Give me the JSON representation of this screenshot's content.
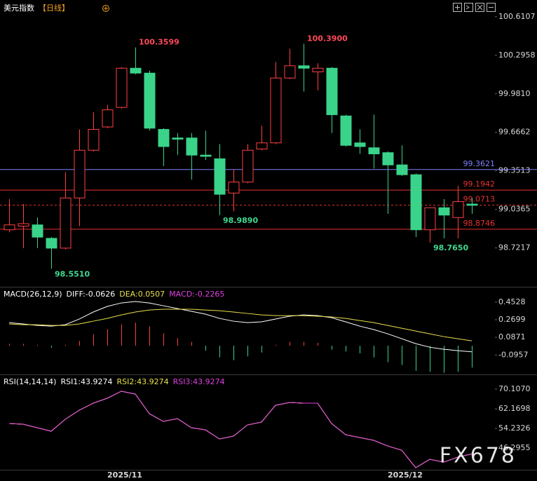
{
  "chart_data": [
    {
      "type": "candlestick",
      "title": "美元指数",
      "period": "【日线】",
      "categories": [
        null,
        null,
        null,
        null,
        null,
        null,
        null,
        null,
        "2025/11",
        null,
        null,
        null,
        null,
        null,
        null,
        null,
        null,
        null,
        null,
        null,
        null,
        null,
        null,
        null,
        null,
        null,
        null,
        null,
        "2025/12",
        null,
        null,
        null,
        null,
        null
      ],
      "open": [
        98.87,
        98.9,
        98.91,
        98.8,
        98.72,
        99.13,
        99.52,
        99.71,
        99.87,
        100.19,
        100.15,
        99.69,
        99.62,
        99.62,
        99.48,
        99.45,
        99.17,
        99.26,
        99.53,
        99.58,
        100.11,
        100.21,
        100.16,
        100.19,
        99.8,
        99.58,
        99.54,
        99.5,
        99.4,
        99.32,
        98.87,
        99.05,
        98.97,
        99.08
      ],
      "high": [
        99.12,
        99.08,
        98.97,
        98.81,
        99.34,
        99.69,
        99.83,
        99.89,
        100.2,
        100.3599,
        100.17,
        99.7,
        99.66,
        99.66,
        99.68,
        99.57,
        99.36,
        99.57,
        99.72,
        100.24,
        100.35,
        100.39,
        100.23,
        100.2,
        99.81,
        99.69,
        99.81,
        99.51,
        99.56,
        99.33,
        99.05,
        99.12,
        99.23,
        99.13
      ],
      "low": [
        98.85,
        98.72,
        98.72,
        98.551,
        98.71,
        98.9,
        99.51,
        99.7,
        99.86,
        100.14,
        99.68,
        99.39,
        99.48,
        99.28,
        99.44,
        98.989,
        99.02,
        99.25,
        99.52,
        99.57,
        100.1,
        100.0,
        100.01,
        99.66,
        99.55,
        99.49,
        99.37,
        99.0,
        99.31,
        98.81,
        98.765,
        98.8,
        98.8,
        99.0
      ],
      "close": [
        98.91,
        98.92,
        98.81,
        98.72,
        99.13,
        99.52,
        99.69,
        99.85,
        100.19,
        100.15,
        99.7,
        99.55,
        99.61,
        99.48,
        99.47,
        99.16,
        99.26,
        99.52,
        99.58,
        100.11,
        100.21,
        100.19,
        100.19,
        99.81,
        99.56,
        99.55,
        99.49,
        99.4,
        99.32,
        98.87,
        99.05,
        98.99,
        99.1,
        99.07
      ],
      "up_color": "#ff4040",
      "down_color": "#3ad38a",
      "ylim": [
        98.41,
        100.69
      ],
      "yticks": [
        100.6107,
        100.2958,
        {
          "value": 99.981,
          "label": "99.9810"
        },
        99.6662,
        99.3513,
        99.0365,
        98.7217
      ],
      "levels": [
        {
          "value": 99.3621,
          "color": "#8080ff"
        },
        {
          "value": 99.1942,
          "color": "#e83030"
        },
        {
          "value": 99.0713,
          "color": "#e83030",
          "style": "dashed"
        },
        {
          "value": 98.8746,
          "color": "#e83030"
        }
      ],
      "annotations": [
        100.3599,
        {
          "value": 100.39,
          "label": "100.3900"
        },
        {
          "value": 98.989,
          "label": "98.9890"
        },
        {
          "value": 98.551,
          "label": "98.5510"
        },
        {
          "value": 98.765,
          "label": "98.7650"
        }
      ],
      "high_label_color": "#ff4a5a",
      "low_label_color": "#40d890"
    },
    {
      "type": "macd",
      "title": "MACD(26,12,9)",
      "series": [
        {
          "name": "DIFF:-0.0626",
          "color": "#ffffff",
          "values": [
            0.24,
            0.226,
            0.211,
            0.204,
            0.218,
            0.277,
            0.35,
            0.408,
            0.444,
            0.459,
            0.444,
            0.415,
            0.386,
            0.357,
            0.328,
            0.284,
            0.255,
            0.24,
            0.248,
            0.277,
            0.306,
            0.32,
            0.313,
            0.291,
            0.248,
            0.204,
            0.168,
            0.124,
            0.073,
            0.022,
            -0.015,
            -0.036,
            -0.051,
            -0.0626
          ]
        },
        {
          "name": "DEA:0.0507",
          "color": "#e8e04a",
          "values": [
            0.226,
            0.218,
            0.218,
            0.211,
            0.211,
            0.226,
            0.255,
            0.284,
            0.32,
            0.35,
            0.371,
            0.379,
            0.379,
            0.379,
            0.371,
            0.364,
            0.35,
            0.335,
            0.32,
            0.313,
            0.313,
            0.313,
            0.306,
            0.299,
            0.284,
            0.262,
            0.24,
            0.211,
            0.182,
            0.153,
            0.124,
            0.095,
            0.073,
            0.0507
          ]
        }
      ],
      "histogram": {
        "name": "MACD:-0.2265",
        "color": "#e040e0",
        "up_color": "#ff4040",
        "down_color": "#3ad38a",
        "values": [
          0.02,
          0.02,
          0.01,
          -0.02,
          0.01,
          0.05,
          0.12,
          0.17,
          0.22,
          0.24,
          0.2,
          0.13,
          0.08,
          0.04,
          -0.05,
          -0.12,
          -0.15,
          -0.11,
          -0.07,
          0.01,
          0.04,
          0.04,
          0.03,
          -0.04,
          -0.06,
          -0.08,
          -0.12,
          -0.17,
          -0.2,
          -0.26,
          -0.27,
          -0.28,
          -0.27,
          -0.2265
        ]
      },
      "ylim": [
        -0.29,
        0.59
      ],
      "yticks": [
        0.4528,
        0.2699,
        0.0871,
        -0.0957
      ]
    },
    {
      "type": "line",
      "title": "RSI(14,14,14)",
      "series": [
        {
          "name": "RSI1:43.9274",
          "color": "#ffffff",
          "values": [
            56.22,
            55.94,
            54.52,
            53.1,
            57.92,
            61.6,
            64.44,
            66.42,
            69.26,
            68.12,
            60.19,
            57.07,
            58.21,
            54.52,
            53.67,
            49.99,
            51.12,
            55.65,
            56.79,
            63.59,
            64.72,
            64.44,
            64.44,
            56.22,
            51.69,
            50.55,
            49.42,
            47.15,
            45.45,
            38.37,
            41.77,
            40.63,
            42.62,
            43.9274
          ]
        },
        {
          "name": "RSI2:43.9274",
          "color": "#e8e04a",
          "values": [
            56.22,
            55.94,
            54.52,
            53.1,
            57.92,
            61.6,
            64.44,
            66.42,
            69.26,
            68.12,
            60.19,
            57.07,
            58.21,
            54.52,
            53.67,
            49.99,
            51.12,
            55.65,
            56.79,
            63.59,
            64.72,
            64.44,
            64.44,
            56.22,
            51.69,
            50.55,
            49.42,
            47.15,
            45.45,
            38.37,
            41.77,
            40.63,
            42.62,
            43.9274
          ]
        },
        {
          "name": "RSI3:43.9274",
          "color": "#e040e0",
          "values": [
            56.22,
            55.94,
            54.52,
            53.1,
            57.92,
            61.6,
            64.44,
            66.42,
            69.26,
            68.12,
            60.19,
            57.07,
            58.21,
            54.52,
            53.67,
            49.99,
            51.12,
            55.65,
            56.79,
            63.59,
            64.72,
            64.44,
            64.44,
            56.22,
            51.69,
            50.55,
            49.42,
            47.15,
            45.45,
            38.37,
            41.77,
            40.63,
            42.62,
            43.9274
          ]
        }
      ],
      "ylim": [
        38.1,
        74.35
      ],
      "yticks": [
        {
          "value": 70.107,
          "label": "70.1070"
        },
        62.1698,
        54.2326,
        46.2955
      ]
    }
  ],
  "watermark": "FX678"
}
